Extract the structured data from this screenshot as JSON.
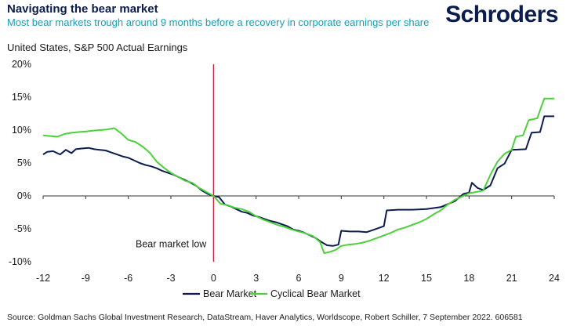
{
  "header": {
    "title": "Navigating the bear market",
    "subtitle": "Most bear markets trough around 9 months before a recovery in corporate earnings per share",
    "logo_text": "Schroders"
  },
  "chart_title": "United States, S&P 500 Actual Earnings",
  "source": "Source: Goldman Sachs Global Investment Research, DataStream, Haver Analytics, Worldscope, Robert Schiller, 7 September 2022. 606581",
  "colors": {
    "bear": "#0b1d4f",
    "cyclical": "#4cd13a",
    "marker": "#c8102e",
    "axis": "#333333"
  },
  "chart_data": {
    "type": "line",
    "ylim": [
      -10,
      20
    ],
    "xlim": [
      -12,
      24
    ],
    "yticks": [
      20,
      15,
      10,
      5,
      0,
      -5,
      -10
    ],
    "ytick_labels": [
      "20%",
      "15%",
      "10%",
      "5%",
      "0%",
      "-5%",
      "-10%"
    ],
    "xticks": [
      -12,
      -9,
      -6,
      -3,
      0,
      3,
      6,
      9,
      12,
      15,
      18,
      21,
      24
    ],
    "annotation": {
      "text": "Bear market low",
      "x": 0
    },
    "series": [
      {
        "name": "Bear Market",
        "color": "#0b1d4f",
        "points": [
          [
            -12,
            6.3
          ],
          [
            -11.7,
            6.7
          ],
          [
            -11.3,
            6.8
          ],
          [
            -10.8,
            6.3
          ],
          [
            -10.4,
            7.0
          ],
          [
            -10.0,
            6.5
          ],
          [
            -9.7,
            7.1
          ],
          [
            -9.3,
            7.2
          ],
          [
            -8.8,
            7.3
          ],
          [
            -8.4,
            7.1
          ],
          [
            -8.0,
            7.0
          ],
          [
            -7.6,
            6.9
          ],
          [
            -7.2,
            6.6
          ],
          [
            -6.8,
            6.3
          ],
          [
            -6.4,
            6.0
          ],
          [
            -6.0,
            5.8
          ],
          [
            -5.6,
            5.4
          ],
          [
            -5.2,
            5.0
          ],
          [
            -4.8,
            4.7
          ],
          [
            -4.4,
            4.5
          ],
          [
            -4.0,
            4.2
          ],
          [
            -3.6,
            3.8
          ],
          [
            -3.2,
            3.5
          ],
          [
            -2.8,
            3.2
          ],
          [
            -2.4,
            2.8
          ],
          [
            -2.0,
            2.4
          ],
          [
            -1.6,
            2.0
          ],
          [
            -1.2,
            1.5
          ],
          [
            -0.8,
            0.8
          ],
          [
            -0.4,
            0.3
          ],
          [
            0,
            0
          ],
          [
            0.4,
            -0.2
          ],
          [
            0.8,
            -1.3
          ],
          [
            1.2,
            -1.6
          ],
          [
            1.6,
            -2.0
          ],
          [
            2.0,
            -2.4
          ],
          [
            2.4,
            -2.6
          ],
          [
            2.8,
            -3.0
          ],
          [
            3.2,
            -3.2
          ],
          [
            3.6,
            -3.5
          ],
          [
            4.0,
            -3.8
          ],
          [
            4.4,
            -4.0
          ],
          [
            4.8,
            -4.3
          ],
          [
            5.2,
            -4.6
          ],
          [
            5.6,
            -5.1
          ],
          [
            6.0,
            -5.3
          ],
          [
            6.4,
            -5.6
          ],
          [
            6.8,
            -6.0
          ],
          [
            7.2,
            -6.4
          ],
          [
            7.6,
            -7.0
          ],
          [
            8.0,
            -7.5
          ],
          [
            8.4,
            -7.6
          ],
          [
            8.8,
            -7.4
          ],
          [
            9.0,
            -5.3
          ],
          [
            9.6,
            -5.4
          ],
          [
            10.2,
            -5.4
          ],
          [
            10.8,
            -5.5
          ],
          [
            11.2,
            -5.2
          ],
          [
            11.6,
            -4.9
          ],
          [
            12.0,
            -4.6
          ],
          [
            12.2,
            -2.2
          ],
          [
            13.0,
            -2.1
          ],
          [
            14.0,
            -2.1
          ],
          [
            15.0,
            -2.0
          ],
          [
            16.0,
            -1.7
          ],
          [
            17.0,
            -0.8
          ],
          [
            17.6,
            0.3
          ],
          [
            18.0,
            0.5
          ],
          [
            18.2,
            2.0
          ],
          [
            18.6,
            1.2
          ],
          [
            19.0,
            0.9
          ],
          [
            19.5,
            1.6
          ],
          [
            20.0,
            4.2
          ],
          [
            20.5,
            4.9
          ],
          [
            21.0,
            7.0
          ],
          [
            22.0,
            7.1
          ],
          [
            22.4,
            9.6
          ],
          [
            23.0,
            9.7
          ],
          [
            23.3,
            12.1
          ],
          [
            24.0,
            12.1
          ]
        ]
      },
      {
        "name": "Cyclical Bear Market",
        "color": "#4cd13a",
        "points": [
          [
            -12,
            9.2
          ],
          [
            -11.5,
            9.1
          ],
          [
            -11.0,
            9.0
          ],
          [
            -10.5,
            9.4
          ],
          [
            -10.0,
            9.6
          ],
          [
            -9.5,
            9.7
          ],
          [
            -9.0,
            9.8
          ],
          [
            -8.5,
            9.9
          ],
          [
            -8.0,
            10.0
          ],
          [
            -7.5,
            10.1
          ],
          [
            -7.0,
            10.3
          ],
          [
            -6.5,
            9.5
          ],
          [
            -6.0,
            8.5
          ],
          [
            -5.5,
            8.2
          ],
          [
            -5.0,
            7.5
          ],
          [
            -4.5,
            6.6
          ],
          [
            -4.0,
            5.2
          ],
          [
            -3.5,
            4.3
          ],
          [
            -3.0,
            3.5
          ],
          [
            -2.5,
            2.9
          ],
          [
            -2.0,
            2.3
          ],
          [
            -1.5,
            2.0
          ],
          [
            -1.0,
            1.2
          ],
          [
            -0.5,
            0.6
          ],
          [
            0,
            0
          ],
          [
            0.5,
            -1.2
          ],
          [
            1.0,
            -1.4
          ],
          [
            1.5,
            -1.8
          ],
          [
            2.0,
            -2.0
          ],
          [
            2.5,
            -2.4
          ],
          [
            3.0,
            -3.1
          ],
          [
            3.5,
            -3.6
          ],
          [
            4.0,
            -4.0
          ],
          [
            4.5,
            -4.4
          ],
          [
            5.0,
            -4.7
          ],
          [
            5.5,
            -5.1
          ],
          [
            6.0,
            -5.4
          ],
          [
            6.5,
            -5.7
          ],
          [
            7.0,
            -6.1
          ],
          [
            7.5,
            -7.0
          ],
          [
            7.8,
            -8.7
          ],
          [
            8.2,
            -8.5
          ],
          [
            8.6,
            -8.2
          ],
          [
            9.0,
            -7.6
          ],
          [
            9.5,
            -7.4
          ],
          [
            10.0,
            -7.3
          ],
          [
            10.5,
            -7.1
          ],
          [
            11.0,
            -6.8
          ],
          [
            11.5,
            -6.4
          ],
          [
            12.0,
            -6.0
          ],
          [
            12.5,
            -5.6
          ],
          [
            13.0,
            -5.1
          ],
          [
            13.5,
            -4.8
          ],
          [
            14.0,
            -4.4
          ],
          [
            14.5,
            -4.0
          ],
          [
            15.0,
            -3.5
          ],
          [
            15.5,
            -2.8
          ],
          [
            16.0,
            -2.2
          ],
          [
            16.5,
            -1.3
          ],
          [
            17.0,
            -0.6
          ],
          [
            17.5,
            -0.1
          ],
          [
            18.0,
            0.4
          ],
          [
            18.5,
            0.6
          ],
          [
            19.0,
            0.8
          ],
          [
            19.5,
            3.2
          ],
          [
            20.0,
            5.2
          ],
          [
            20.5,
            6.4
          ],
          [
            21.0,
            7.0
          ],
          [
            21.3,
            9.0
          ],
          [
            21.8,
            9.2
          ],
          [
            22.2,
            11.5
          ],
          [
            22.8,
            11.8
          ],
          [
            23.3,
            14.8
          ],
          [
            24.0,
            14.8
          ]
        ]
      }
    ]
  }
}
